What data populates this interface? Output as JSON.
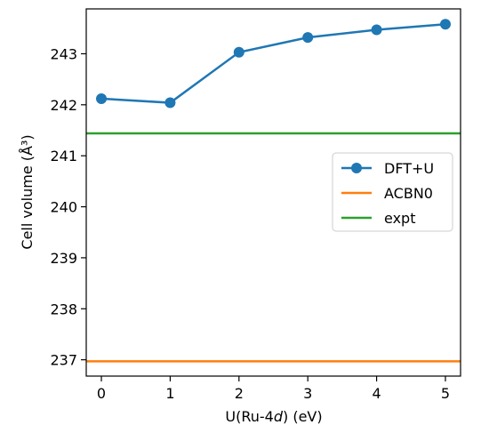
{
  "chart_data": {
    "type": "line",
    "xlabel_prefix": "U(Ru-4",
    "xlabel_italic": "d",
    "xlabel_suffix": ") (eV)",
    "ylabel": "Cell volume (Å³)",
    "xlim": [
      -0.22,
      5.22
    ],
    "ylim": [
      236.68,
      243.88
    ],
    "xticks": [
      0,
      1,
      2,
      3,
      4,
      5
    ],
    "yticks": [
      237,
      238,
      239,
      240,
      241,
      242,
      243
    ],
    "grid": false,
    "legend_position": "center-right",
    "series": [
      {
        "name": "DFT+U",
        "kind": "line-marker",
        "color": "#1f77b4",
        "x": [
          0,
          1,
          2,
          3,
          4,
          5
        ],
        "y": [
          242.12,
          242.04,
          243.03,
          243.32,
          243.47,
          243.58
        ]
      },
      {
        "name": "ACBN0",
        "kind": "hline",
        "color": "#ff7f0e",
        "y": 236.97
      },
      {
        "name": "expt",
        "kind": "hline",
        "color": "#2ca02c",
        "y": 241.44
      }
    ]
  }
}
